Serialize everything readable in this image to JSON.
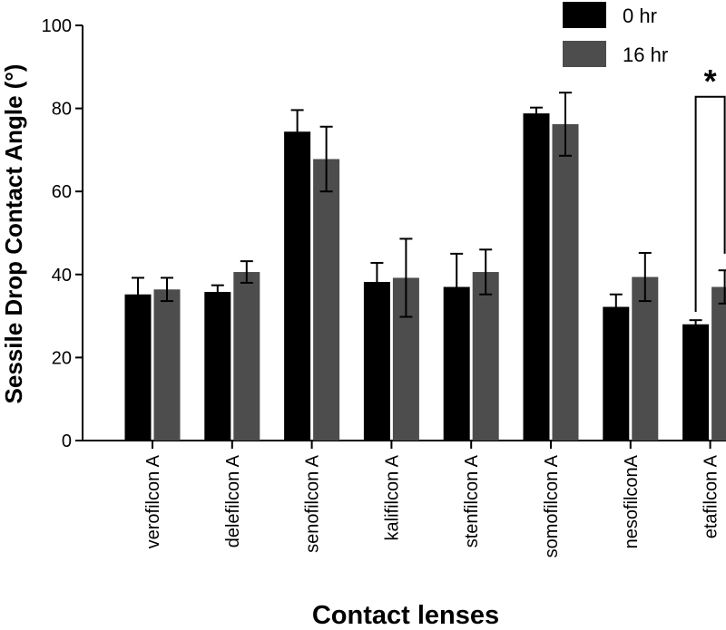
{
  "chart_data": {
    "type": "bar",
    "title": "",
    "xlabel": "Contact lenses",
    "ylabel": "Sessile Drop Contact Angle (°)",
    "ylim": [
      0,
      100
    ],
    "yticks": [
      "0",
      "20",
      "40",
      "60",
      "80",
      "100"
    ],
    "categories": [
      "verofilcon A",
      "delefilcon A",
      "senofilcon A",
      "kalifilcon A",
      "stenfilcon A",
      "somofilcon A",
      "nesofilconA",
      "etafilcon A"
    ],
    "series": [
      {
        "name": "0 hr",
        "color": "#000000",
        "values": [
          35.2,
          35.8,
          74.4,
          38.2,
          37.0,
          78.8,
          32.2,
          28.0
        ],
        "errors": [
          4.0,
          1.6,
          5.2,
          4.6,
          8.0,
          1.4,
          3.0,
          1.0
        ]
      },
      {
        "name": "16 hr",
        "color": "#4d4d4d",
        "values": [
          36.4,
          40.6,
          67.8,
          39.2,
          40.6,
          76.2,
          39.4,
          37.0
        ],
        "errors": [
          2.8,
          2.6,
          7.8,
          9.4,
          5.4,
          7.6,
          5.8,
          4.0
        ]
      }
    ],
    "annotations": [
      {
        "text": "*",
        "category": "etafilcon A",
        "type": "significance-bracket"
      }
    ],
    "legend": {
      "position": "top-right"
    }
  }
}
